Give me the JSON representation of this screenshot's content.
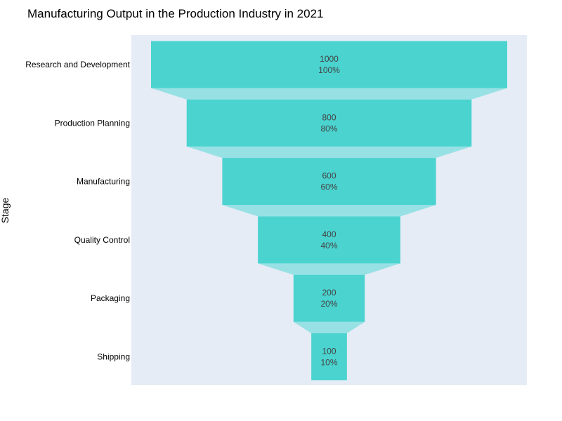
{
  "chart_data": {
    "type": "funnel",
    "title": "Manufacturing Output in the Production Industry in 2021",
    "ylabel": "Stage",
    "categories": [
      "Research and Development",
      "Production Planning",
      "Manufacturing",
      "Quality Control",
      "Packaging",
      "Shipping"
    ],
    "values": [
      1000,
      800,
      600,
      400,
      200,
      100
    ],
    "percent_labels": [
      "100%",
      "80%",
      "60%",
      "40%",
      "20%",
      "10%"
    ],
    "colors": {
      "bar": "#4ad3cf",
      "connector": "#97e1e4",
      "plot_background": "#e5ecf6"
    }
  }
}
